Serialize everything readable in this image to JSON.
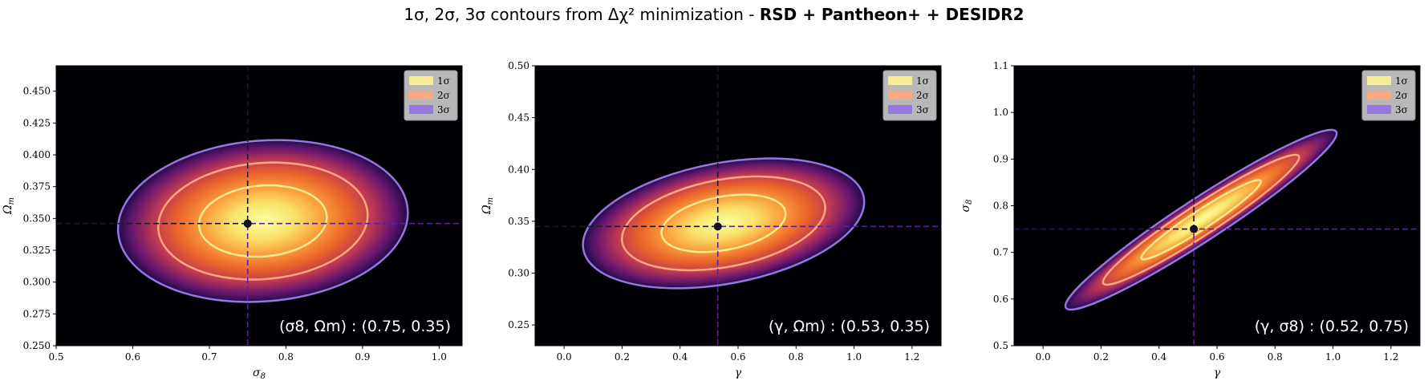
{
  "figure": {
    "title_prefix": "1σ, 2σ, 3σ contours from Δχ² minimization - ",
    "title_bold": "RSD + Pantheon+ + DESIDR2"
  },
  "colors": {
    "background": "#000004",
    "crosshair": "#5a1fa0",
    "contour_1": "#f6ec92",
    "contour_2": "#fca982",
    "contour_3": "#9577df",
    "legend_bg": "#c8c8c8"
  },
  "chart_data": [
    {
      "type": "contour",
      "xlabel": "σ8",
      "ylabel": "Ωm",
      "xlim": [
        0.5,
        1.03
      ],
      "ylim": [
        0.25,
        0.47
      ],
      "xticks": [
        0.5,
        0.6,
        0.7,
        0.8,
        0.9,
        1.0
      ],
      "xtick_labels": [
        "0.5",
        "0.6",
        "0.7",
        "0.8",
        "0.9",
        "1.0"
      ],
      "yticks": [
        0.25,
        0.275,
        0.3,
        0.325,
        0.35,
        0.375,
        0.4,
        0.425,
        0.45
      ],
      "ytick_labels": [
        "0.250",
        "0.275",
        "0.300",
        "0.325",
        "0.350",
        "0.375",
        "0.400",
        "0.425",
        "0.450"
      ],
      "best_fit": [
        0.75,
        0.346
      ],
      "center": [
        0.77,
        0.348
      ],
      "sigma_x": 0.055,
      "sigma_y": 0.0185,
      "rho": 0.1,
      "legend": [
        "1σ",
        "2σ",
        "3σ"
      ],
      "legend_position": "top-right",
      "annotation": "(σ8, Ωm) : (0.75, 0.35)"
    },
    {
      "type": "contour",
      "xlabel": "γ",
      "ylabel": "Ωm",
      "xlim": [
        -0.1,
        1.3
      ],
      "ylim": [
        0.23,
        0.5
      ],
      "xticks": [
        0.0,
        0.2,
        0.4,
        0.6,
        0.8,
        1.0,
        1.2
      ],
      "xtick_labels": [
        "0.0",
        "0.2",
        "0.4",
        "0.6",
        "0.8",
        "1.0",
        "1.2"
      ],
      "yticks": [
        0.25,
        0.3,
        0.35,
        0.4,
        0.45,
        0.5
      ],
      "ytick_labels": [
        "0.25",
        "0.30",
        "0.35",
        "0.40",
        "0.45",
        "0.50"
      ],
      "best_fit": [
        0.53,
        0.345
      ],
      "center": [
        0.55,
        0.348
      ],
      "sigma_x": 0.141,
      "sigma_y": 0.0182,
      "rho": 0.33,
      "legend": [
        "1σ",
        "2σ",
        "3σ"
      ],
      "legend_position": "top-right",
      "annotation": "(γ, Ωm) : (0.53, 0.35)"
    },
    {
      "type": "contour",
      "xlabel": "γ",
      "ylabel": "σ8",
      "xlim": [
        -0.1,
        1.3
      ],
      "ylim": [
        0.5,
        1.1
      ],
      "xticks": [
        0.0,
        0.2,
        0.4,
        0.6,
        0.8,
        1.0,
        1.2
      ],
      "xtick_labels": [
        "0.0",
        "0.2",
        "0.4",
        "0.6",
        "0.8",
        "1.0",
        "1.2"
      ],
      "yticks": [
        0.5,
        0.6,
        0.7,
        0.8,
        0.9,
        1.0,
        1.1
      ],
      "ytick_labels": [
        "0.5",
        "0.6",
        "0.7",
        "0.8",
        "0.9",
        "1.0",
        "1.1"
      ],
      "best_fit": [
        0.52,
        0.75
      ],
      "center": [
        0.545,
        0.77
      ],
      "sigma_x": 0.136,
      "sigma_y": 0.056,
      "rho": 0.96,
      "legend": [
        "1σ",
        "2σ",
        "3σ"
      ],
      "legend_position": "top-right",
      "annotation": "(γ, σ8) : (0.52, 0.75)"
    }
  ]
}
